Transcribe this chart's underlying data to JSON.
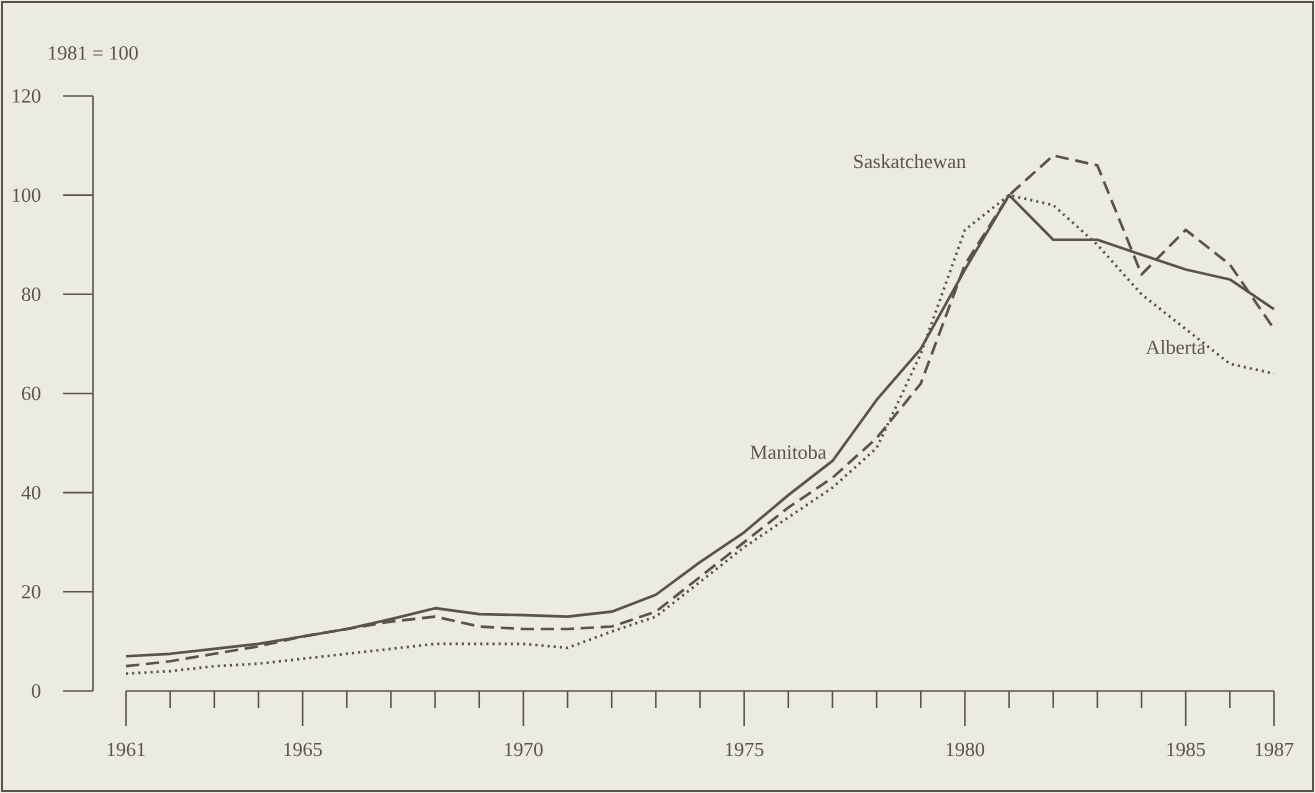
{
  "chart_data": {
    "type": "line",
    "ylabel": "1981 = 100",
    "x": [
      1961,
      1962,
      1963,
      1964,
      1965,
      1966,
      1967,
      1968,
      1969,
      1970,
      1971,
      1972,
      1973,
      1974,
      1975,
      1976,
      1977,
      1978,
      1979,
      1980,
      1981,
      1982,
      1983,
      1984,
      1985,
      1986,
      1987
    ],
    "xlim": [
      1961,
      1987
    ],
    "ylim": [
      0,
      120
    ],
    "yticks": [
      0,
      20,
      40,
      60,
      80,
      100,
      120
    ],
    "xticks": [
      1961,
      1965,
      1970,
      1975,
      1980,
      1985,
      1987
    ],
    "legend": false,
    "grid": false,
    "series": [
      {
        "name": "Manitoba",
        "color": "#5a5448",
        "line_style": "solid",
        "values": [
          7,
          7.5,
          8.5,
          9.5,
          11,
          12.5,
          14.5,
          16.7,
          15.5,
          15.3,
          15,
          16,
          19.4,
          26,
          32,
          39.5,
          46.4,
          58.7,
          69,
          85,
          100,
          91,
          91,
          88,
          85,
          83,
          77
        ]
      },
      {
        "name": "Saskatchewan",
        "color": "#5a5448",
        "line_style": "dashed",
        "values": [
          5,
          6,
          7.5,
          9,
          11,
          12.5,
          14,
          15,
          13,
          12.5,
          12.5,
          13,
          16,
          23,
          30,
          37,
          43,
          51,
          62,
          86,
          100,
          108,
          106,
          84,
          93,
          86,
          73
        ]
      },
      {
        "name": "Alberta",
        "color": "#5a5448",
        "line_style": "dotted",
        "values": [
          3.5,
          4,
          5,
          5.5,
          6.5,
          7.5,
          8.5,
          9.5,
          9.5,
          9.5,
          8.7,
          12,
          15,
          22,
          29,
          35,
          41,
          49,
          68,
          93,
          100,
          98,
          90,
          80,
          73,
          66,
          64
        ]
      }
    ]
  }
}
